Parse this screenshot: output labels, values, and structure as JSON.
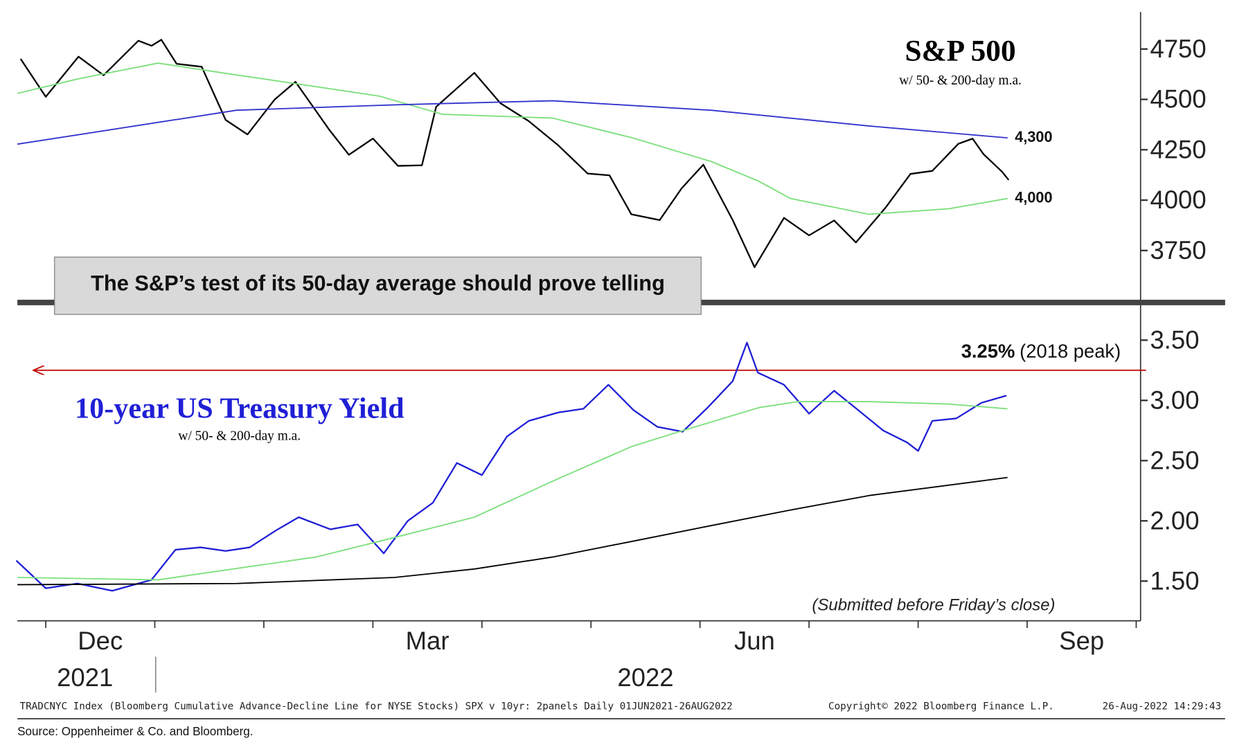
{
  "chart_data": [
    {
      "type": "line",
      "title": "S&P 500",
      "subtitle": "w/ 50- & 200-day m.a.",
      "ylim": [
        3508,
        4934
      ],
      "yticks": [
        3750,
        4000,
        4250,
        4500,
        4750
      ],
      "xlim": [
        -0.26,
        10.04
      ],
      "series": [
        {
          "color": "#000000",
          "x": [
            -0.23,
            0,
            0.3,
            0.53,
            0.85,
            0.97,
            1.06,
            1.2,
            1.43,
            1.65,
            1.85,
            2.1,
            2.29,
            2.6,
            2.78,
            3,
            3.23,
            3.45,
            3.58,
            3.93,
            4.17,
            4.43,
            4.7,
            4.97,
            5.17,
            5.37,
            5.63,
            5.83,
            6.03,
            6.3,
            6.5,
            6.77,
            7,
            7.23,
            7.43,
            7.7,
            7.93,
            8.13,
            8.37,
            8.5,
            8.6,
            8.77,
            8.83
          ],
          "values": [
            4701,
            4513,
            4712,
            4620,
            4791,
            4766,
            4796,
            4677,
            4662,
            4398,
            4326,
            4500,
            4587,
            4349,
            4225,
            4306,
            4170,
            4173,
            4463,
            4632,
            4481,
            4392,
            4272,
            4132,
            4123,
            3930,
            3901,
            4058,
            4176,
            3901,
            3667,
            3912,
            3825,
            3899,
            3790,
            3962,
            4130,
            4145,
            4280,
            4305,
            4228,
            4141,
            4100
          ]
        },
        {
          "color": "#7be07b",
          "x": [
            -0.26,
            0.3,
            1.03,
            1.75,
            2.48,
            3.06,
            3.64,
            4.65,
            5.38,
            6.1,
            6.54,
            6.83,
            7.55,
            8.28,
            8.82
          ],
          "values": [
            4530,
            4602,
            4680,
            4621,
            4563,
            4516,
            4426,
            4407,
            4309,
            4192,
            4094,
            4008,
            3930,
            3957,
            4008
          ]
        },
        {
          "color": "#3333cc",
          "x": [
            -0.26,
            1.75,
            3.2,
            4.65,
            6.1,
            7.55,
            8.82
          ],
          "values": [
            4278,
            4446,
            4473,
            4493,
            4446,
            4368,
            4309
          ]
        }
      ],
      "annotations": [
        {
          "value": 4300,
          "label": "4,300"
        },
        {
          "value": 4000,
          "label": "4,000"
        }
      ],
      "callout": "The S&P’s test of its 50-day average should prove telling"
    },
    {
      "type": "line",
      "title": "10-year US Treasury Yield",
      "subtitle": "w/ 50- & 200-day m.a.",
      "ylim": [
        1.17,
        3.78
      ],
      "yticks": [
        {
          "value": 1.5,
          "label": "1.50"
        },
        {
          "value": 2,
          "label": "2.00"
        },
        {
          "value": 2.5,
          "label": "2.50"
        },
        {
          "value": 3,
          "label": "3.00"
        },
        {
          "value": 3.5,
          "label": "3.50"
        }
      ],
      "xlim": [
        -0.26,
        10.04
      ],
      "xticks": [
        {
          "value": 0.5,
          "label": "Dec"
        },
        {
          "value": 3.5,
          "label": "Mar"
        },
        {
          "value": 6.5,
          "label": "Jun"
        },
        {
          "value": 9.5,
          "label": "Sep"
        }
      ],
      "xminor": [
        0,
        1,
        2,
        3,
        4,
        5,
        6,
        7,
        8,
        9,
        10
      ],
      "year_labels": [
        {
          "value": 0.36,
          "label": "2021"
        },
        {
          "value": 5.5,
          "label": "2022"
        }
      ],
      "series": [
        {
          "color": "#1f1fd6",
          "x": [
            -0.27,
            0,
            0.29,
            0.61,
            0.97,
            1.19,
            1.42,
            1.65,
            1.87,
            2.11,
            2.32,
            2.61,
            2.86,
            3.1,
            3.32,
            3.55,
            3.77,
            4.0,
            4.23,
            4.43,
            4.7,
            4.93,
            5.16,
            5.39,
            5.61,
            5.84,
            6.07,
            6.3,
            6.43,
            6.53,
            6.77,
            7.0,
            7.23,
            7.45,
            7.68,
            7.9,
            8.0,
            8.13,
            8.35,
            8.58,
            8.81
          ],
          "values": [
            1.67,
            1.44,
            1.48,
            1.42,
            1.51,
            1.76,
            1.78,
            1.75,
            1.78,
            1.92,
            2.03,
            1.93,
            1.97,
            1.73,
            2.0,
            2.15,
            2.48,
            2.38,
            2.7,
            2.83,
            2.9,
            2.93,
            3.13,
            2.92,
            2.78,
            2.74,
            2.94,
            3.16,
            3.48,
            3.23,
            3.13,
            2.89,
            3.08,
            2.92,
            2.75,
            2.65,
            2.58,
            2.83,
            2.85,
            2.98,
            3.04
          ]
        },
        {
          "color": "#7be07b",
          "x": [
            -0.26,
            1.03,
            2.48,
            3.06,
            3.93,
            4.65,
            5.38,
            5.88,
            6.54,
            6.9,
            7.55,
            8.28,
            8.82
          ],
          "values": [
            1.53,
            1.51,
            1.7,
            1.83,
            2.03,
            2.33,
            2.62,
            2.76,
            2.94,
            2.99,
            2.99,
            2.97,
            2.93
          ]
        },
        {
          "color": "#000000",
          "x": [
            -0.26,
            1.75,
            3.2,
            3.93,
            4.65,
            5.38,
            6.1,
            6.83,
            7.55,
            8.82
          ],
          "values": [
            1.47,
            1.48,
            1.53,
            1.6,
            1.7,
            1.83,
            1.96,
            2.09,
            2.21,
            2.36
          ]
        }
      ],
      "reference_lines": [
        {
          "value": 3.25,
          "label": "3.25%",
          "note": "(2018 peak)",
          "color": "#c00000"
        }
      ],
      "note": "(Submitted before Friday’s close)"
    }
  ],
  "footer": {
    "left": "TRADCNYC Index (Bloomberg Cumulative Advance-Decline Line for NYSE Stocks) SPX v 10yr: 2panels  Daily 01JUN2021-26AUG2022",
    "copyright": "Copyright© 2022 Bloomberg Finance L.P.",
    "timestamp": "26-Aug-2022 14:29:43",
    "source": "Source:  Oppenheimer & Co. and Bloomberg."
  }
}
